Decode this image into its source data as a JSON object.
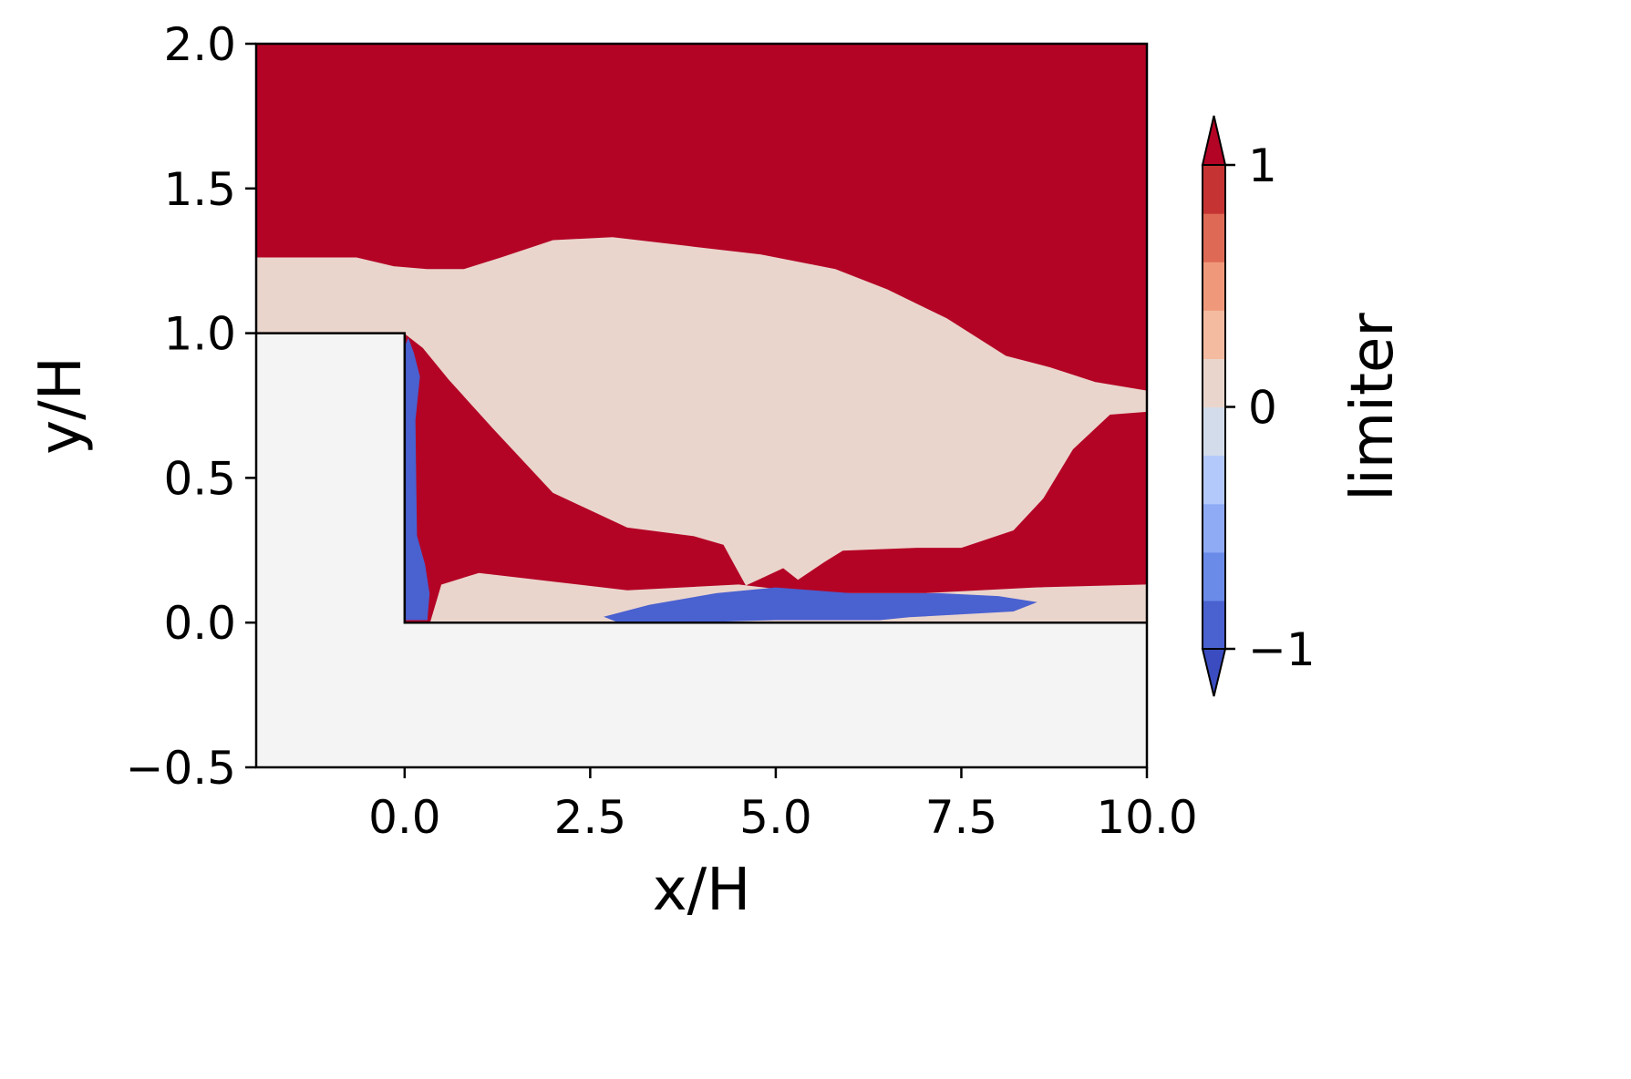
{
  "chart_data": {
    "type": "heatmap",
    "title": "",
    "xlabel": "x/H",
    "ylabel": "y/H",
    "xlim": [
      -2.0,
      10.0
    ],
    "ylim": [
      -0.5,
      2.0
    ],
    "x_ticks": [
      0.0,
      2.5,
      5.0,
      7.5,
      10.0
    ],
    "x_tick_labels": [
      "0.0",
      "2.5",
      "5.0",
      "7.5",
      "10.0"
    ],
    "y_ticks": [
      -0.5,
      0.0,
      0.5,
      1.0,
      1.5,
      2.0
    ],
    "y_tick_labels": [
      "−0.5",
      "0.0",
      "0.5",
      "1.0",
      "1.5",
      "2.0"
    ],
    "grid": false,
    "geometry": {
      "description": "backward-facing step (solid region, not part of flow field)",
      "step_height": 1.0,
      "step_x": 0.0,
      "solid_color": "#f4f4f4"
    },
    "colorbar": {
      "label": "limiter",
      "min": -1,
      "max": 1,
      "extend": "both",
      "colormap": "coolwarm",
      "ticks": [
        -1,
        0,
        1
      ],
      "tick_labels": [
        "−1",
        "0",
        "1"
      ],
      "level_colors": [
        "#4a61d0",
        "#6a8be8",
        "#8fabf6",
        "#b3c9fb",
        "#d2dceb",
        "#ead5cc",
        "#f5bba0",
        "#f0997a",
        "#de6a55",
        "#c53432"
      ],
      "under_color": "#3b4cc0",
      "over_color": "#b40426"
    },
    "regions": [
      {
        "name": "limiter approx 1 (free stream / outer flow)",
        "value": 1.0,
        "color": "#b40426",
        "polygon": [
          [
            -2.0,
            2.0
          ],
          [
            10.0,
            2.0
          ],
          [
            10.0,
            0.0
          ],
          [
            0.0,
            0.0
          ],
          [
            0.0,
            1.0
          ],
          [
            -2.0,
            1.0
          ]
        ]
      },
      {
        "name": "limiter approx 0 (shear layer / recirculation zone)",
        "value": 0.0,
        "color": "#ead5cc",
        "polygon": [
          [
            -2.0,
            1.0
          ],
          [
            -2.0,
            1.26
          ],
          [
            -0.65,
            1.26
          ],
          [
            -0.15,
            1.23
          ],
          [
            0.3,
            1.22
          ],
          [
            0.8,
            1.22
          ],
          [
            1.3,
            1.26
          ],
          [
            2.0,
            1.32
          ],
          [
            2.8,
            1.33
          ],
          [
            3.8,
            1.3
          ],
          [
            4.8,
            1.27
          ],
          [
            5.8,
            1.22
          ],
          [
            6.5,
            1.15
          ],
          [
            7.3,
            1.05
          ],
          [
            8.1,
            0.92
          ],
          [
            8.7,
            0.88
          ],
          [
            9.3,
            0.83
          ],
          [
            10.0,
            0.8
          ],
          [
            10.0,
            0.73
          ],
          [
            9.5,
            0.72
          ],
          [
            9.0,
            0.6
          ],
          [
            8.6,
            0.43
          ],
          [
            8.2,
            0.32
          ],
          [
            7.5,
            0.26
          ],
          [
            6.9,
            0.26
          ],
          [
            5.9,
            0.25
          ],
          [
            5.65,
            0.21
          ],
          [
            5.3,
            0.15
          ],
          [
            5.1,
            0.19
          ],
          [
            4.85,
            0.16
          ],
          [
            4.6,
            0.13
          ],
          [
            4.45,
            0.2
          ],
          [
            4.3,
            0.27
          ],
          [
            3.9,
            0.3
          ],
          [
            3.0,
            0.33
          ],
          [
            2.0,
            0.45
          ],
          [
            1.2,
            0.67
          ],
          [
            0.6,
            0.84
          ],
          [
            0.25,
            0.95
          ],
          [
            0.0,
            1.0
          ]
        ]
      },
      {
        "name": "limiter approx 0 (near-wall band downstream)",
        "value": 0.0,
        "color": "#ead5cc",
        "polygon": [
          [
            0.35,
            0.0
          ],
          [
            0.5,
            0.13
          ],
          [
            1.0,
            0.17
          ],
          [
            2.0,
            0.14
          ],
          [
            3.0,
            0.11
          ],
          [
            4.5,
            0.13
          ],
          [
            5.5,
            0.1
          ],
          [
            7.0,
            0.1
          ],
          [
            8.5,
            0.12
          ],
          [
            10.0,
            0.13
          ],
          [
            10.0,
            0.0
          ]
        ]
      },
      {
        "name": "limiter approx -1 (near-wall reattachment region)",
        "value": -1.0,
        "color": "#4a61d0",
        "polygon": [
          [
            2.7,
            0.02
          ],
          [
            3.3,
            0.06
          ],
          [
            4.2,
            0.1
          ],
          [
            5.0,
            0.12
          ],
          [
            6.0,
            0.1
          ],
          [
            7.2,
            0.1
          ],
          [
            8.0,
            0.09
          ],
          [
            8.5,
            0.07
          ],
          [
            8.2,
            0.04
          ],
          [
            6.8,
            0.02
          ],
          [
            6.4,
            0.01
          ],
          [
            5.0,
            0.01
          ],
          [
            3.5,
            0.0
          ],
          [
            2.9,
            0.0
          ]
        ]
      },
      {
        "name": "limiter approx -1 (strip along step face)",
        "value": -1.0,
        "color": "#4a61d0",
        "polygon": [
          [
            0.02,
            0.01
          ],
          [
            0.0,
            0.95
          ],
          [
            0.05,
            0.98
          ],
          [
            0.12,
            0.93
          ],
          [
            0.2,
            0.85
          ],
          [
            0.14,
            0.7
          ],
          [
            0.15,
            0.5
          ],
          [
            0.16,
            0.3
          ],
          [
            0.27,
            0.2
          ],
          [
            0.33,
            0.1
          ],
          [
            0.3,
            0.01
          ]
        ]
      }
    ]
  }
}
